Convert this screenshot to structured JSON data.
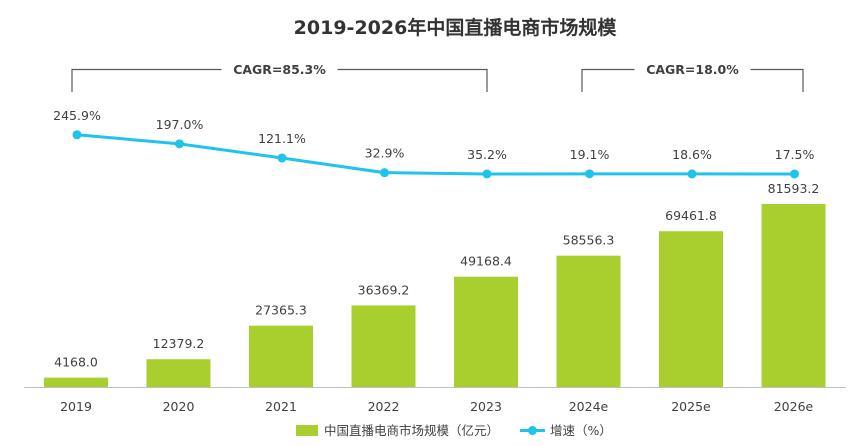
{
  "chart_data": {
    "type": "bar",
    "title": "2019-2026年中国直播电商市场规模",
    "categories": [
      "2019",
      "2020",
      "2021",
      "2022",
      "2023",
      "2024e",
      "2025e",
      "2026e"
    ],
    "series": [
      {
        "name": "中国直播电商市场规模（亿元）",
        "type": "bar",
        "values": [
          4168.0,
          12379.2,
          27365.3,
          36369.2,
          49168.4,
          58556.3,
          69461.8,
          81593.2
        ],
        "labels": [
          "4168.0",
          "12379.2",
          "27365.3",
          "36369.2",
          "49168.4",
          "58556.3",
          "69461.8",
          "81593.2"
        ]
      },
      {
        "name": "增速（%）",
        "type": "line",
        "values": [
          245.9,
          197.0,
          121.1,
          32.9,
          35.2,
          19.1,
          18.6,
          17.5
        ],
        "labels": [
          "245.9%",
          "197.0%",
          "121.1%",
          "32.9%",
          "35.2%",
          "19.1%",
          "18.6%",
          "17.5%"
        ]
      }
    ],
    "annotations": [
      {
        "text": "CAGR=85.3%",
        "from": "2019",
        "to": "2023"
      },
      {
        "text": "CAGR=18.0%",
        "from": "2024e",
        "to": "2026e"
      }
    ],
    "legend_position": "bottom-center",
    "grid": false,
    "colors": {
      "bar": "#A8CF2E",
      "line": "#1FC3EC",
      "axis": "#BFBFBF",
      "text": "#404040"
    }
  }
}
